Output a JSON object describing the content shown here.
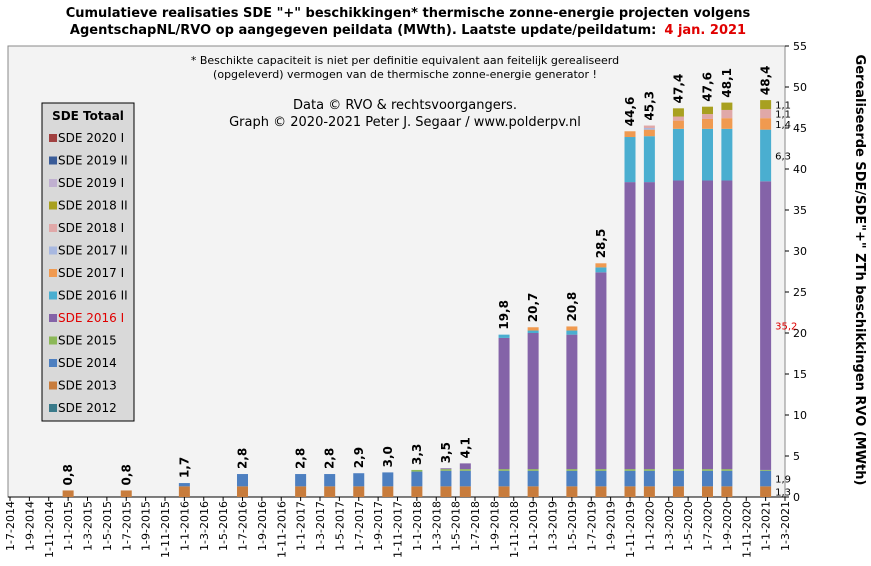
{
  "chart_data": {
    "type": "stacked_bar",
    "title": [
      "Cumulatieve realisaties SDE \"+\" beschikkingen*  thermische zonne-energie projecten volgens",
      "AgentschapNL/RVO  op aangegeven peildata (MWth).  Laatste update/peildatum:"
    ],
    "title_date": "4 jan. 2021",
    "notes": [
      "* Beschikte capaciteit is niet per definitie equivalent aan feitelijk gerealiseerd",
      "(opgeleverd) vermogen van de thermische zonne-energie generator !"
    ],
    "credits": [
      "Data © RVO & rechtsvoorgangers.",
      "Graph  © 2020-2021  Peter J. Segaar / www.polderpv.nl"
    ],
    "y_label": "Gerealiseerde SDE/SDE\"+\" ZTh beschikkingen RVO (MWth)",
    "legend_title": "SDE Totaal",
    "highlight_color": "#e00000",
    "highlight_series": "SDE 2016 I",
    "x": [
      "1-1-2015",
      "1-7-2015",
      "1-1-2016",
      "1-7-2016",
      "1-1-2017",
      "1-4-2017",
      "1-7-2017",
      "1-10-2017",
      "1-1-2018",
      "1-4-2018",
      "1-6-2018",
      "1-10-2018",
      "1-1-2019",
      "1-5-2019",
      "1-8-2019",
      "1-11-2019",
      "1-1-2020",
      "1-4-2020",
      "1-7-2020",
      "1-9-2020",
      "1-1-2021"
    ],
    "xlim": [
      "1-7-2014",
      "1-3-2021"
    ],
    "xticks": [
      "1-7-2014",
      "1-9-2014",
      "1-11-2014",
      "1-1-2015",
      "1-3-2015",
      "1-5-2015",
      "1-7-2015",
      "1-9-2015",
      "1-11-2015",
      "1-1-2016",
      "1-3-2016",
      "1-5-2016",
      "1-7-2016",
      "1-9-2016",
      "1-11-2016",
      "1-1-2017",
      "1-3-2017",
      "1-5-2017",
      "1-7-2017",
      "1-9-2017",
      "1-11-2017",
      "1-1-2018",
      "1-3-2018",
      "1-5-2018",
      "1-7-2018",
      "1-9-2018",
      "1-11-2018",
      "1-1-2019",
      "1-3-2019",
      "1-5-2019",
      "1-7-2019",
      "1-9-2019",
      "1-11-2019",
      "1-1-2020",
      "1-3-2020",
      "1-5-2020",
      "1-7-2020",
      "1-9-2020",
      "1-11-2020",
      "1-1-2021",
      "1-3-2021"
    ],
    "ylim": [
      0,
      55
    ],
    "yticks": [
      0,
      5,
      10,
      15,
      20,
      25,
      30,
      35,
      40,
      45,
      50,
      55
    ],
    "totals": [
      0.8,
      0.8,
      1.7,
      2.8,
      2.8,
      2.8,
      2.9,
      3.0,
      3.3,
      3.5,
      4.1,
      19.8,
      20.7,
      20.8,
      28.5,
      44.6,
      45.3,
      47.4,
      47.6,
      48.1,
      48.4
    ],
    "total_labels": [
      "0,8",
      "0,8",
      "1,7",
      "2,8",
      "2,8",
      "2,8",
      "2,9",
      "3,0",
      "3,3",
      "3,5",
      "4,1",
      "19,8",
      "20,7",
      "20,8",
      "28,5",
      "44,6",
      "45,3",
      "47,4",
      "47,6",
      "48,1",
      "48,4"
    ],
    "series": [
      {
        "name": "SDE 2012",
        "color": "#3a7a8a",
        "values": [
          null,
          null,
          null,
          null,
          null,
          null,
          null,
          null,
          null,
          null,
          null,
          null,
          null,
          null,
          null,
          null,
          null,
          null,
          null,
          null,
          null
        ]
      },
      {
        "name": "SDE 2013",
        "color": "#c87c3c",
        "values": [
          0.8,
          0.8,
          1.3,
          1.3,
          1.3,
          1.3,
          1.3,
          1.3,
          1.3,
          1.3,
          1.3,
          1.3,
          1.3,
          1.3,
          1.3,
          1.3,
          1.3,
          1.3,
          1.3,
          1.3,
          1.3
        ],
        "value_labels": [
          null,
          null,
          null,
          null,
          null,
          null,
          null,
          null,
          null,
          null,
          null,
          null,
          null,
          null,
          null,
          null,
          null,
          null,
          null,
          null,
          "1,3"
        ]
      },
      {
        "name": "SDE 2014",
        "color": "#4d7fc0",
        "values": [
          null,
          null,
          0.4,
          1.5,
          1.5,
          1.5,
          1.6,
          1.7,
          1.8,
          1.9,
          1.9,
          1.9,
          1.9,
          1.9,
          1.9,
          1.9,
          1.9,
          1.9,
          1.9,
          1.9,
          1.9
        ],
        "value_labels": [
          null,
          null,
          null,
          null,
          null,
          null,
          null,
          null,
          null,
          null,
          null,
          null,
          null,
          null,
          null,
          null,
          null,
          null,
          null,
          null,
          "1,9"
        ]
      },
      {
        "name": "SDE 2015",
        "color": "#8cb858",
        "values": [
          null,
          null,
          null,
          null,
          null,
          null,
          null,
          null,
          0.2,
          0.2,
          0.2,
          0.2,
          0.2,
          0.2,
          0.2,
          0.2,
          0.2,
          0.2,
          0.2,
          0.2,
          0.1
        ]
      },
      {
        "name": "SDE 2016 I",
        "color": "#8463a8",
        "values": [
          null,
          null,
          null,
          null,
          null,
          null,
          null,
          null,
          null,
          0.1,
          0.7,
          16.0,
          16.6,
          16.4,
          24.0,
          35.0,
          35.0,
          35.2,
          35.2,
          35.2,
          35.2
        ],
        "value_labels": [
          null,
          null,
          null,
          null,
          null,
          null,
          null,
          null,
          null,
          null,
          null,
          null,
          null,
          null,
          null,
          null,
          null,
          null,
          null,
          null,
          "35,2"
        ]
      },
      {
        "name": "SDE 2016 II",
        "color": "#4aaed0",
        "values": [
          null,
          null,
          null,
          null,
          null,
          null,
          null,
          null,
          null,
          null,
          null,
          0.4,
          0.3,
          0.5,
          0.6,
          5.5,
          5.6,
          6.3,
          6.3,
          6.3,
          6.3
        ],
        "value_labels": [
          null,
          null,
          null,
          null,
          null,
          null,
          null,
          null,
          null,
          null,
          null,
          null,
          null,
          null,
          null,
          null,
          null,
          null,
          null,
          null,
          "6,3"
        ]
      },
      {
        "name": "SDE 2017 I",
        "color": "#f09a50",
        "values": [
          null,
          null,
          null,
          null,
          null,
          null,
          null,
          null,
          null,
          null,
          null,
          null,
          0.4,
          0.5,
          0.5,
          0.7,
          0.8,
          1.0,
          1.2,
          1.3,
          1.4
        ],
        "value_labels": [
          null,
          null,
          null,
          null,
          null,
          null,
          null,
          null,
          null,
          null,
          null,
          null,
          null,
          null,
          null,
          null,
          null,
          null,
          null,
          null,
          "1,4"
        ]
      },
      {
        "name": "SDE 2017 II",
        "color": "#a8b8e0",
        "values": [
          null,
          null,
          null,
          null,
          null,
          null,
          null,
          null,
          null,
          null,
          null,
          null,
          null,
          null,
          null,
          null,
          0.2,
          null,
          null,
          null,
          null
        ]
      },
      {
        "name": "SDE 2018 I",
        "color": "#e0a8a8",
        "values": [
          null,
          null,
          null,
          null,
          null,
          null,
          null,
          null,
          null,
          null,
          null,
          null,
          null,
          null,
          null,
          null,
          0.3,
          0.5,
          0.6,
          1.0,
          1.1
        ],
        "value_labels": [
          null,
          null,
          null,
          null,
          null,
          null,
          null,
          null,
          null,
          null,
          null,
          null,
          null,
          null,
          null,
          null,
          null,
          null,
          null,
          null,
          "1,1"
        ]
      },
      {
        "name": "SDE 2018 II",
        "color": "#a8a020",
        "values": [
          null,
          null,
          null,
          null,
          null,
          null,
          null,
          null,
          null,
          null,
          null,
          null,
          null,
          null,
          null,
          null,
          null,
          1.0,
          0.9,
          0.9,
          1.1
        ],
        "value_labels": [
          null,
          null,
          null,
          null,
          null,
          null,
          null,
          null,
          null,
          null,
          null,
          null,
          null,
          null,
          null,
          null,
          null,
          null,
          null,
          null,
          "1,1"
        ]
      },
      {
        "name": "SDE 2019 I",
        "color": "#c0b0d0",
        "values": [
          null,
          null,
          null,
          null,
          null,
          null,
          null,
          null,
          null,
          null,
          null,
          null,
          null,
          null,
          null,
          null,
          null,
          null,
          null,
          null,
          null
        ]
      },
      {
        "name": "SDE 2019 II",
        "color": "#3a5c98",
        "values": [
          null,
          null,
          null,
          null,
          null,
          null,
          null,
          null,
          null,
          null,
          null,
          null,
          null,
          null,
          null,
          null,
          null,
          null,
          null,
          null,
          null
        ]
      },
      {
        "name": "SDE 2020 I",
        "color": "#a04040",
        "values": [
          null,
          null,
          null,
          null,
          null,
          null,
          null,
          null,
          null,
          null,
          null,
          null,
          null,
          null,
          null,
          null,
          null,
          null,
          null,
          null,
          null
        ]
      }
    ]
  }
}
